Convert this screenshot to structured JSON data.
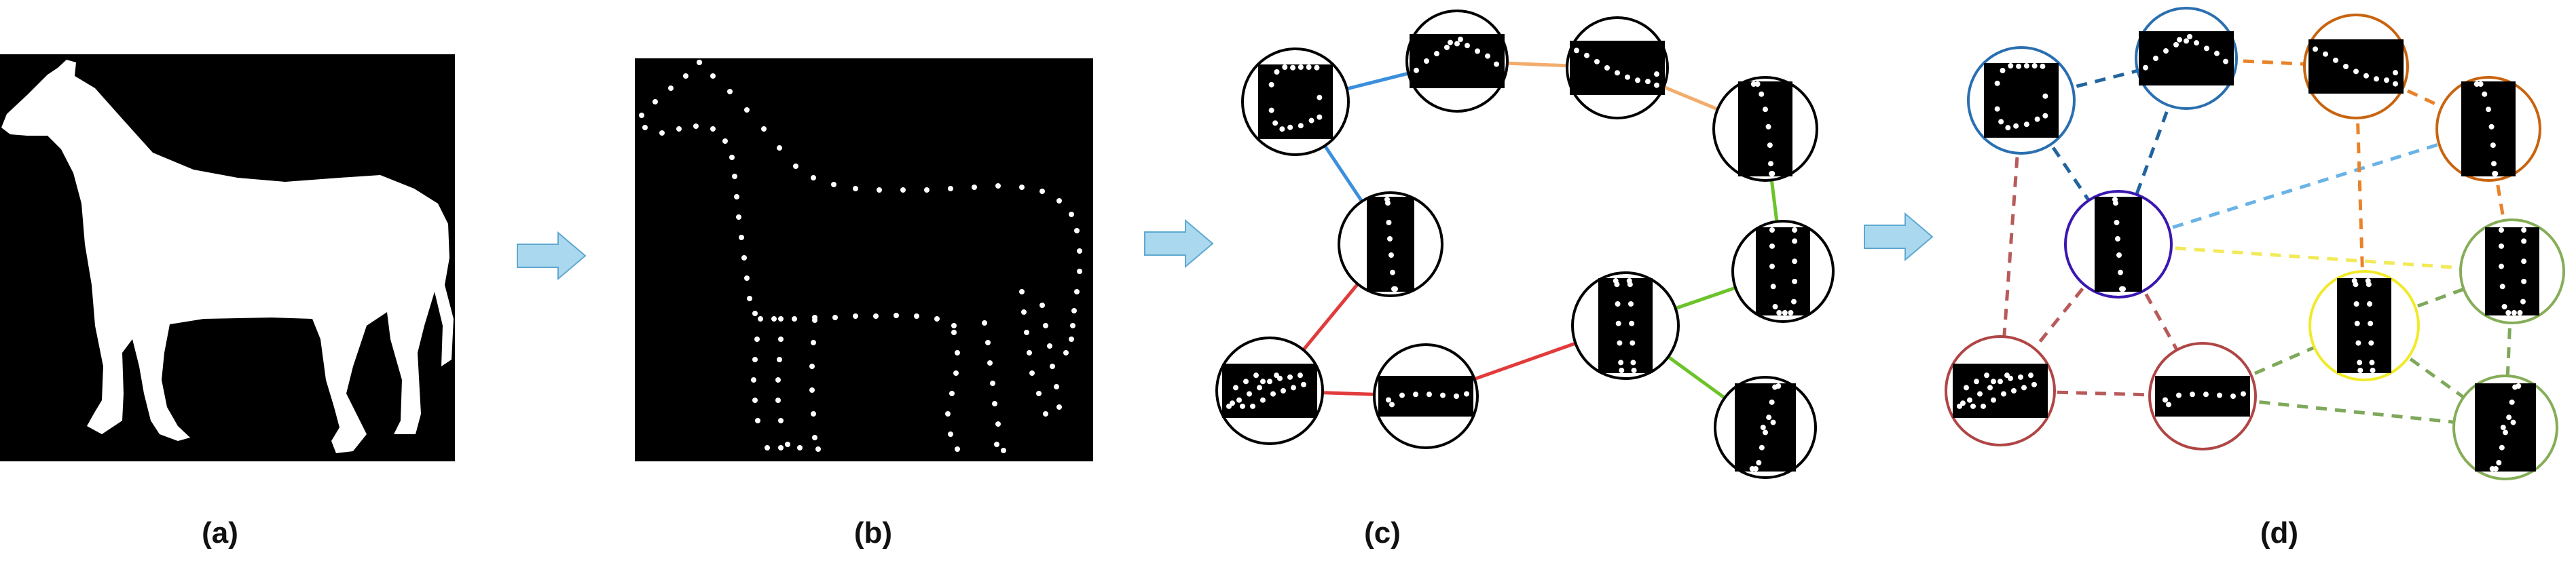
{
  "panels": [
    {
      "id": "a",
      "label": "(a)"
    },
    {
      "id": "b",
      "label": "(b)"
    },
    {
      "id": "c",
      "label": "(c)"
    },
    {
      "id": "d",
      "label": "(d)"
    }
  ],
  "colors": {
    "background": "#ffffff",
    "image_bg": "#000000",
    "silhouette": "#ffffff",
    "arrow_fill": "#a9d8ef",
    "arrow_stroke": "#5fa8cf",
    "node_ring_c": "#000000",
    "edge_blue": "#3c8fdc",
    "edge_orange": "#f2ad6c",
    "edge_green": "#6cc32a",
    "edge_red": "#e23b3b",
    "ring_blue": "#2a6fb0",
    "ring_orange": "#c8640f",
    "ring_green": "#86ad57",
    "ring_red": "#b04545",
    "ring_purple": "#3a18b0",
    "ring_yellow": "#f0ea2a",
    "dash_blue_dark": "#21649e",
    "dash_blue_light": "#6ab3e6",
    "dash_orange": "#e8832a",
    "dash_red": "#b85a5a",
    "dash_green": "#7ea85a",
    "dash_yellow": "#f2ea5a"
  },
  "nodes": [
    {
      "id": "n1",
      "patch": "curl"
    },
    {
      "id": "n2",
      "patch": "arch"
    },
    {
      "id": "n3",
      "patch": "slope"
    },
    {
      "id": "n4",
      "patch": "arc-down"
    },
    {
      "id": "n5",
      "patch": "vertical"
    },
    {
      "id": "n6",
      "patch": "u-shape"
    },
    {
      "id": "n7",
      "patch": "double-column"
    },
    {
      "id": "n8",
      "patch": "cluster"
    },
    {
      "id": "n9",
      "patch": "flat-row"
    },
    {
      "id": "n10",
      "patch": "diagonal"
    }
  ],
  "edges_c": [
    {
      "from": "n1",
      "to": "n2",
      "color": "edge_blue"
    },
    {
      "from": "n1",
      "to": "n5",
      "color": "edge_blue"
    },
    {
      "from": "n2",
      "to": "n3",
      "color": "edge_orange"
    },
    {
      "from": "n3",
      "to": "n4",
      "color": "edge_orange"
    },
    {
      "from": "n4",
      "to": "n6",
      "color": "edge_green"
    },
    {
      "from": "n6",
      "to": "n7",
      "color": "edge_green"
    },
    {
      "from": "n7",
      "to": "n10",
      "color": "edge_green"
    },
    {
      "from": "n5",
      "to": "n8",
      "color": "edge_red"
    },
    {
      "from": "n8",
      "to": "n9",
      "color": "edge_red"
    },
    {
      "from": "n9",
      "to": "n7",
      "color": "edge_red"
    }
  ],
  "rings_d": {
    "n1": "ring_blue",
    "n2": "ring_blue",
    "n3": "ring_orange",
    "n4": "ring_orange",
    "n5": "ring_purple",
    "n6": "ring_green",
    "n7": "ring_yellow",
    "n8": "ring_red",
    "n9": "ring_red",
    "n10": "ring_green"
  },
  "edges_d": [
    {
      "from": "n1",
      "to": "n2",
      "color": "dash_blue_dark"
    },
    {
      "from": "n1",
      "to": "n5",
      "color": "dash_blue_dark"
    },
    {
      "from": "n2",
      "to": "n5",
      "color": "dash_blue_dark"
    },
    {
      "from": "n5",
      "to": "n4",
      "color": "dash_blue_light"
    },
    {
      "from": "n2",
      "to": "n3",
      "color": "dash_orange"
    },
    {
      "from": "n3",
      "to": "n4",
      "color": "dash_orange"
    },
    {
      "from": "n3",
      "to": "n7",
      "color": "dash_orange"
    },
    {
      "from": "n4",
      "to": "n6",
      "color": "dash_orange"
    },
    {
      "from": "n1",
      "to": "n8",
      "color": "dash_red"
    },
    {
      "from": "n5",
      "to": "n8",
      "color": "dash_red"
    },
    {
      "from": "n5",
      "to": "n9",
      "color": "dash_red"
    },
    {
      "from": "n8",
      "to": "n9",
      "color": "dash_red"
    },
    {
      "from": "n5",
      "to": "n6",
      "color": "dash_yellow"
    },
    {
      "from": "n7",
      "to": "n6",
      "color": "dash_green"
    },
    {
      "from": "n9",
      "to": "n7",
      "color": "dash_green"
    },
    {
      "from": "n9",
      "to": "n10",
      "color": "dash_green"
    },
    {
      "from": "n7",
      "to": "n10",
      "color": "dash_green"
    },
    {
      "from": "n6",
      "to": "n10",
      "color": "dash_green"
    }
  ]
}
